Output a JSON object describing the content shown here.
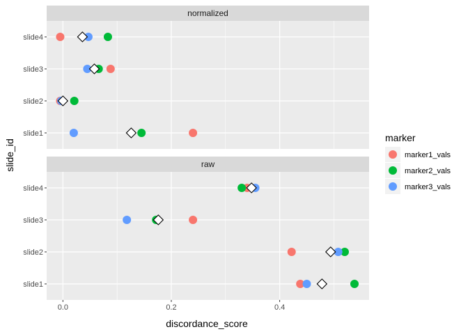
{
  "chart_data": {
    "type": "scatter",
    "xlabel": "discordance_score",
    "ylabel": "slide_id",
    "xlim": [
      -0.03,
      0.565
    ],
    "x_ticks": [
      0.0,
      0.2,
      0.4
    ],
    "x_tick_labels": [
      "0.0",
      "0.2",
      "0.4"
    ],
    "categories": [
      "slide1",
      "slide2",
      "slide3",
      "slide4"
    ],
    "legend": {
      "title": "marker",
      "placement": "right",
      "entries": [
        "marker1_vals",
        "marker2_vals",
        "marker3_vals"
      ]
    },
    "series_colors": {
      "marker1_vals": "#F8766D",
      "marker2_vals": "#00BA38",
      "marker3_vals": "#619CFF"
    },
    "mean_marker": {
      "shape": "diamond",
      "fill": "#FFFFFF",
      "stroke": "#000000"
    },
    "panels": [
      {
        "strip": "normalized",
        "points": {
          "slide1": {
            "marker1_vals": 0.24,
            "marker2_vals": 0.145,
            "marker3_vals": 0.02,
            "mean": 0.126
          },
          "slide2": {
            "marker1_vals": -0.005,
            "marker2_vals": 0.021,
            "marker3_vals": -0.003,
            "mean": 0.0
          },
          "slide3": {
            "marker1_vals": 0.088,
            "marker2_vals": 0.066,
            "marker3_vals": 0.045,
            "mean": 0.058
          },
          "slide4": {
            "marker1_vals": -0.005,
            "marker2_vals": 0.083,
            "marker3_vals": 0.047,
            "mean": 0.036
          }
        }
      },
      {
        "strip": "raw",
        "points": {
          "slide1": {
            "marker1_vals": 0.438,
            "marker2_vals": 0.538,
            "marker3_vals": 0.45,
            "mean": 0.478
          },
          "slide2": {
            "marker1_vals": 0.422,
            "marker2_vals": 0.52,
            "marker3_vals": 0.508,
            "mean": 0.494
          },
          "slide3": {
            "marker1_vals": 0.24,
            "marker2_vals": 0.172,
            "marker3_vals": 0.118,
            "mean": 0.176
          },
          "slide4": {
            "marker1_vals": 0.34,
            "marker2_vals": 0.33,
            "marker3_vals": 0.355,
            "mean": 0.348
          }
        }
      }
    ]
  }
}
